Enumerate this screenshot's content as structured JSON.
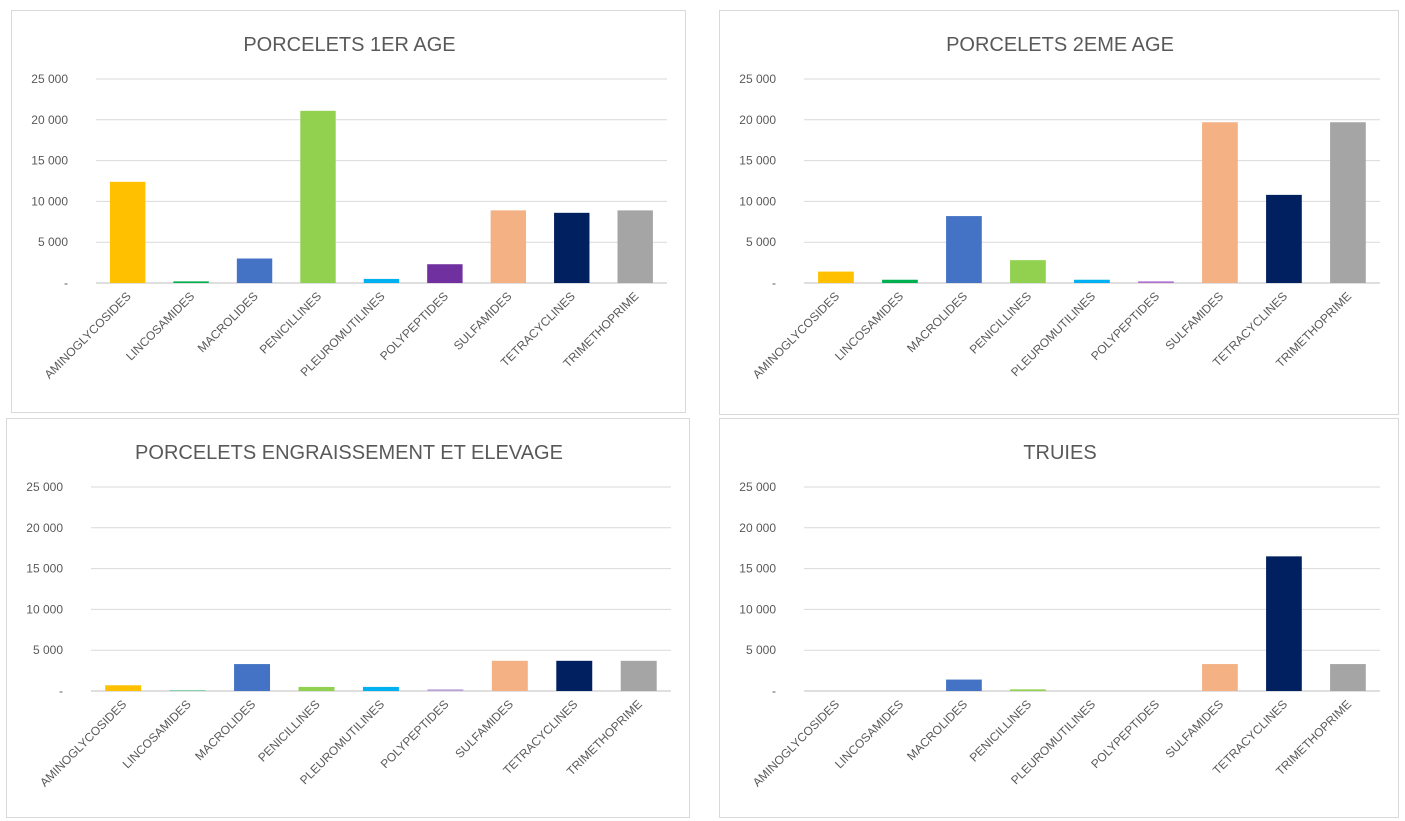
{
  "chart_data": [
    {
      "type": "bar",
      "title": "PORCELETS 1ER AGE",
      "categories": [
        "AMINOGLYCOSIDES",
        "LINCOSAMIDES",
        "MACROLIDES",
        "PENICILLINES",
        "PLEUROMUTILINES",
        "POLYPEPTIDES",
        "SULFAMIDES",
        "TETRACYCLINES",
        "TRIMETHOPRIME"
      ],
      "values": [
        12400,
        200,
        3000,
        21100,
        500,
        2300,
        8900,
        8600,
        8900
      ],
      "colors": [
        "#ffc000",
        "#00b050",
        "#4472c4",
        "#92d050",
        "#00b0f0",
        "#7030a0",
        "#f4b183",
        "#002060",
        "#a5a5a5"
      ],
      "ylim": [
        0,
        25000
      ],
      "yticks": [
        {
          "value": 0,
          "label": "-"
        },
        {
          "value": 5000,
          "label": "5 000"
        },
        {
          "value": 10000,
          "label": "10 000"
        },
        {
          "value": 15000,
          "label": "15 000"
        },
        {
          "value": 20000,
          "label": "20 000"
        },
        {
          "value": 25000,
          "label": "25 000"
        }
      ],
      "grid": true
    },
    {
      "type": "bar",
      "title": "PORCELETS 2EME AGE",
      "categories": [
        "AMINOGLYCOSIDES",
        "LINCOSAMIDES",
        "MACROLIDES",
        "PENICILLINES",
        "PLEUROMUTILINES",
        "POLYPEPTIDES",
        "SULFAMIDES",
        "TETRACYCLINES",
        "TRIMETHOPRIME"
      ],
      "values": [
        1400,
        400,
        8200,
        2800,
        400,
        200,
        19700,
        10800,
        19700
      ],
      "colors": [
        "#ffc000",
        "#00b050",
        "#4472c4",
        "#92d050",
        "#00b0f0",
        "#b070d0",
        "#f4b183",
        "#002060",
        "#a5a5a5"
      ],
      "ylim": [
        0,
        25000
      ],
      "yticks": [
        {
          "value": 0,
          "label": "-"
        },
        {
          "value": 5000,
          "label": "5 000"
        },
        {
          "value": 10000,
          "label": "10 000"
        },
        {
          "value": 15000,
          "label": "15 000"
        },
        {
          "value": 20000,
          "label": "20 000"
        },
        {
          "value": 25000,
          "label": "25 000"
        }
      ],
      "grid": true
    },
    {
      "type": "bar",
      "title": "PORCELETS ENGRAISSEMENT ET ELEVAGE",
      "categories": [
        "AMINOGLYCOSIDES",
        "LINCOSAMIDES",
        "MACROLIDES",
        "PENICILLINES",
        "PLEUROMUTILINES",
        "POLYPEPTIDES",
        "SULFAMIDES",
        "TETRACYCLINES",
        "TRIMETHOPRIME"
      ],
      "values": [
        700,
        100,
        3300,
        500,
        500,
        200,
        3700,
        3700,
        3700
      ],
      "colors": [
        "#ffc000",
        "#66cc99",
        "#4472c4",
        "#92d050",
        "#00b0f0",
        "#b8a0d8",
        "#f4b183",
        "#002060",
        "#a5a5a5"
      ],
      "ylim": [
        0,
        25000
      ],
      "yticks": [
        {
          "value": 0,
          "label": "-"
        },
        {
          "value": 5000,
          "label": "5 000"
        },
        {
          "value": 10000,
          "label": "10 000"
        },
        {
          "value": 15000,
          "label": "15 000"
        },
        {
          "value": 20000,
          "label": "20 000"
        },
        {
          "value": 25000,
          "label": "25 000"
        }
      ],
      "grid": true
    },
    {
      "type": "bar",
      "title": "TRUIES",
      "categories": [
        "AMINOGLYCOSIDES",
        "LINCOSAMIDES",
        "MACROLIDES",
        "PENICILLINES",
        "PLEUROMUTILINES",
        "POLYPEPTIDES",
        "SULFAMIDES",
        "TETRACYCLINES",
        "TRIMETHOPRIME"
      ],
      "values": [
        0,
        0,
        1400,
        200,
        0,
        0,
        3300,
        16500,
        3300
      ],
      "colors": [
        "#ffc000",
        "#00b050",
        "#4472c4",
        "#92d050",
        "#00b0f0",
        "#7030a0",
        "#f4b183",
        "#002060",
        "#a5a5a5"
      ],
      "ylim": [
        0,
        25000
      ],
      "yticks": [
        {
          "value": 0,
          "label": "-"
        },
        {
          "value": 5000,
          "label": "5 000"
        },
        {
          "value": 10000,
          "label": "10 000"
        },
        {
          "value": 15000,
          "label": "15 000"
        },
        {
          "value": 20000,
          "label": "20 000"
        },
        {
          "value": 25000,
          "label": "25 000"
        }
      ],
      "grid": true
    }
  ]
}
